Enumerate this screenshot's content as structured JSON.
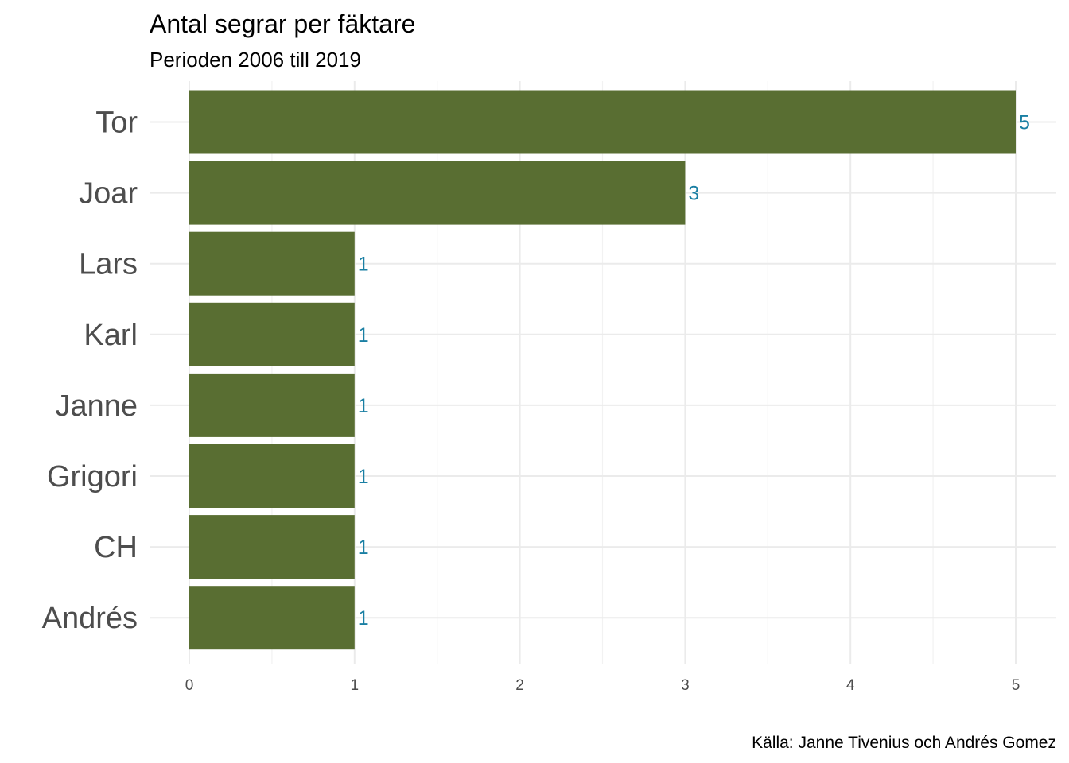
{
  "chart_data": {
    "type": "bar",
    "orientation": "horizontal",
    "title": "Antal segrar per fäktare",
    "subtitle": "Perioden 2006 till 2019",
    "caption": "Källa: Janne Tivenius och Andrés Gomez",
    "xlabel": "",
    "ylabel": "",
    "categories": [
      "Tor",
      "Joar",
      "Lars",
      "Karl",
      "Janne",
      "Grigori",
      "CH",
      "Andrés"
    ],
    "values": [
      5,
      3,
      1,
      1,
      1,
      1,
      1,
      1
    ],
    "data_labels": [
      "5",
      "3",
      "1",
      "1",
      "1",
      "1",
      "1",
      "1"
    ],
    "x_ticks": [
      "0",
      "1",
      "2",
      "3",
      "4",
      "5"
    ],
    "xlim": [
      0,
      5.25
    ],
    "grid": true,
    "legend": "none",
    "colors": {
      "bar": "#596e32",
      "data_label": "#1a7fa3"
    }
  }
}
